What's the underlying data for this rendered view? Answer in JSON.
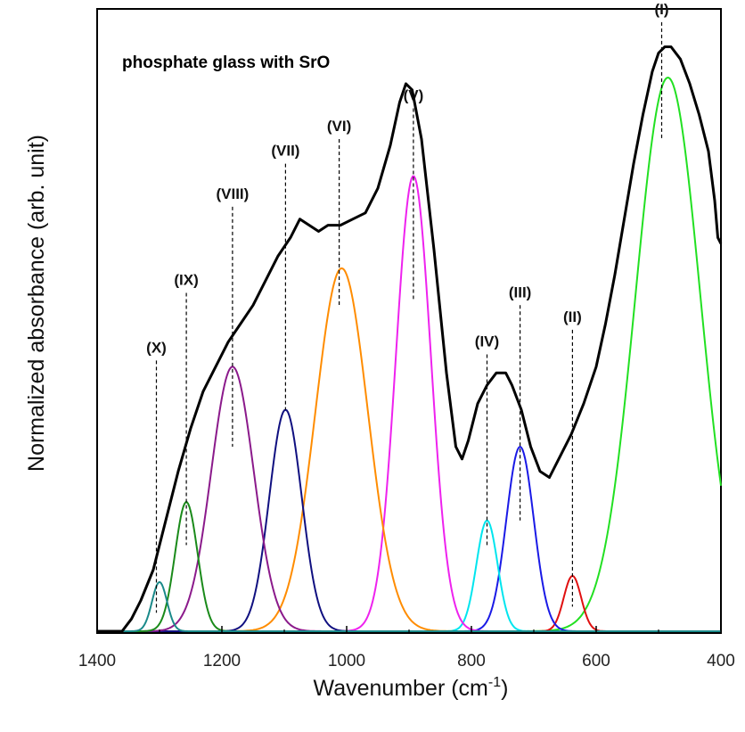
{
  "chart_data": {
    "type": "line",
    "title": "",
    "annotation": "phosphate glass with SrO",
    "xlabel": "Wavenumber (cm",
    "xlabel_sup": "-1",
    "xlabel_close": ")",
    "ylabel": "Normalized absorbance (arb. unit)",
    "xlim": [
      1400,
      400
    ],
    "ylim": [
      0,
      1
    ],
    "x_reversed": true,
    "x_ticks": [
      1400,
      1200,
      1000,
      800,
      600,
      400
    ],
    "y_ticks_shown": false,
    "grid": false,
    "legend": "none",
    "colors": {
      "spectrum": "#000000",
      "baseline": "#4a8a8a",
      "dashed": "#000000"
    },
    "spectrum": {
      "name": "",
      "points": [
        [
          1400,
          0.0
        ],
        [
          1360,
          0.0
        ],
        [
          1345,
          0.02
        ],
        [
          1330,
          0.05
        ],
        [
          1310,
          0.1
        ],
        [
          1290,
          0.18
        ],
        [
          1270,
          0.26
        ],
        [
          1250,
          0.33
        ],
        [
          1230,
          0.39
        ],
        [
          1210,
          0.43
        ],
        [
          1190,
          0.47
        ],
        [
          1170,
          0.5
        ],
        [
          1150,
          0.53
        ],
        [
          1130,
          0.57
        ],
        [
          1110,
          0.61
        ],
        [
          1090,
          0.64
        ],
        [
          1075,
          0.67
        ],
        [
          1060,
          0.66
        ],
        [
          1045,
          0.65
        ],
        [
          1030,
          0.66
        ],
        [
          1010,
          0.66
        ],
        [
          990,
          0.67
        ],
        [
          970,
          0.68
        ],
        [
          950,
          0.72
        ],
        [
          930,
          0.79
        ],
        [
          915,
          0.86
        ],
        [
          905,
          0.89
        ],
        [
          895,
          0.88
        ],
        [
          880,
          0.8
        ],
        [
          860,
          0.62
        ],
        [
          840,
          0.42
        ],
        [
          825,
          0.3
        ],
        [
          815,
          0.28
        ],
        [
          805,
          0.31
        ],
        [
          790,
          0.37
        ],
        [
          775,
          0.4
        ],
        [
          760,
          0.42
        ],
        [
          745,
          0.42
        ],
        [
          735,
          0.4
        ],
        [
          720,
          0.36
        ],
        [
          705,
          0.3
        ],
        [
          690,
          0.26
        ],
        [
          675,
          0.25
        ],
        [
          660,
          0.28
        ],
        [
          640,
          0.32
        ],
        [
          620,
          0.37
        ],
        [
          600,
          0.43
        ],
        [
          585,
          0.5
        ],
        [
          570,
          0.58
        ],
        [
          555,
          0.67
        ],
        [
          540,
          0.76
        ],
        [
          525,
          0.84
        ],
        [
          510,
          0.91
        ],
        [
          500,
          0.94
        ],
        [
          490,
          0.95
        ],
        [
          480,
          0.95
        ],
        [
          465,
          0.93
        ],
        [
          450,
          0.89
        ],
        [
          435,
          0.84
        ],
        [
          420,
          0.78
        ],
        [
          410,
          0.7
        ],
        [
          405,
          0.64
        ],
        [
          400,
          0.63
        ]
      ]
    },
    "peaks": [
      {
        "label": "(I)",
        "center": 485,
        "height": 0.9,
        "width": 52,
        "color": "#22e022",
        "marker_x": 495,
        "marker_top": 0.99,
        "marker_bottom": 0.8
      },
      {
        "label": "(II)",
        "center": 638,
        "height": 0.09,
        "width": 14,
        "color": "#e01010",
        "marker_x": 638,
        "marker_top": 0.49,
        "marker_bottom": 0.04
      },
      {
        "label": "(III)",
        "center": 722,
        "height": 0.3,
        "width": 22,
        "color": "#1a1ae6",
        "marker_x": 722,
        "marker_top": 0.53,
        "marker_bottom": 0.18
      },
      {
        "label": "(IV)",
        "center": 775,
        "height": 0.18,
        "width": 17,
        "color": "#00e5ee",
        "marker_x": 775,
        "marker_top": 0.45,
        "marker_bottom": 0.14
      },
      {
        "label": "(V)",
        "center": 893,
        "height": 0.74,
        "width": 28,
        "color": "#ee22ee",
        "marker_x": 893,
        "marker_top": 0.85,
        "marker_bottom": 0.54
      },
      {
        "label": "(VI)",
        "center": 1008,
        "height": 0.59,
        "width": 42,
        "color": "#ff8c00",
        "marker_x": 1012,
        "marker_top": 0.8,
        "marker_bottom": 0.53
      },
      {
        "label": "(VII)",
        "center": 1098,
        "height": 0.36,
        "width": 26,
        "color": "#101080",
        "marker_x": 1098,
        "marker_top": 0.76,
        "marker_bottom": 0.36
      },
      {
        "label": "(VIII)",
        "center": 1183,
        "height": 0.43,
        "width": 34,
        "color": "#8b1a8b",
        "marker_x": 1183,
        "marker_top": 0.69,
        "marker_bottom": 0.3
      },
      {
        "label": "(IX)",
        "center": 1257,
        "height": 0.21,
        "width": 18,
        "color": "#1a8a1a",
        "marker_x": 1257,
        "marker_top": 0.55,
        "marker_bottom": 0.14
      },
      {
        "label": "(X)",
        "center": 1300,
        "height": 0.08,
        "width": 12,
        "color": "#1a8a8a",
        "marker_x": 1305,
        "marker_top": 0.44,
        "marker_bottom": 0.03
      }
    ]
  }
}
